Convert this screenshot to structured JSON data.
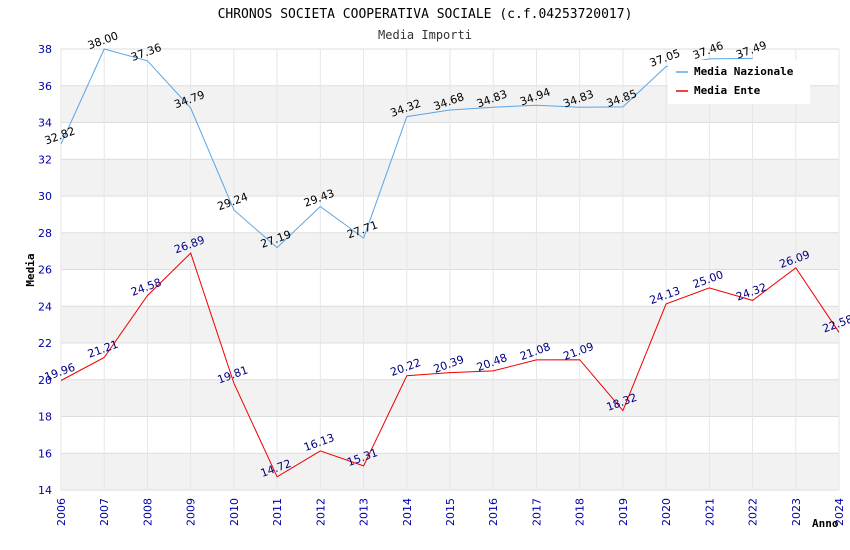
{
  "chart_data": {
    "type": "line",
    "title": "CHRONOS SOCIETA COOPERATIVA SOCIALE (c.f.04253720017)",
    "subtitle": "Media Importi",
    "xlabel": "Anno",
    "ylabel": "Media",
    "ylim": [
      14,
      38
    ],
    "yticks": [
      14,
      16,
      18,
      20,
      22,
      24,
      26,
      28,
      30,
      32,
      34,
      36,
      38
    ],
    "x": [
      "2006",
      "2007",
      "2008",
      "2009",
      "2010",
      "2011",
      "2012",
      "2013",
      "2014",
      "2015",
      "2016",
      "2017",
      "2018",
      "2019",
      "2020",
      "2021",
      "2022",
      "2023",
      "2024"
    ],
    "legend_position": "top-right",
    "series": [
      {
        "name": "Media Nazionale",
        "color": "#5aa5e6",
        "label_color": "#000000",
        "values": [
          32.82,
          38.0,
          37.36,
          34.79,
          29.24,
          27.19,
          29.43,
          27.71,
          34.32,
          34.68,
          34.83,
          34.94,
          34.83,
          34.85,
          37.05,
          37.46,
          37.49,
          null,
          null
        ],
        "labels": [
          "32.82",
          "38.00",
          "37.36",
          "34.79",
          "29.24",
          "27.19",
          "29.43",
          "27.71",
          "34.32",
          "34.68",
          "34.83",
          "34.94",
          "34.83",
          "34.85",
          "37.05",
          "37.46",
          "37.49",
          "",
          ""
        ]
      },
      {
        "name": "Media Ente",
        "color": "#ee0000",
        "label_color": "#000080",
        "values": [
          19.96,
          21.21,
          24.58,
          26.89,
          19.81,
          14.72,
          16.13,
          15.31,
          20.22,
          20.39,
          20.48,
          21.08,
          21.09,
          18.32,
          24.13,
          25.0,
          24.32,
          26.09,
          22.58
        ],
        "labels": [
          "19.96",
          "21.21",
          "24.58",
          "26.89",
          "19.81",
          "14.72",
          "16.13",
          "15.31",
          "20.22",
          "20.39",
          "20.48",
          "21.08",
          "21.09",
          "18.32",
          "24.13",
          "25.00",
          "24.32",
          "26.09",
          "22.58"
        ]
      }
    ]
  }
}
